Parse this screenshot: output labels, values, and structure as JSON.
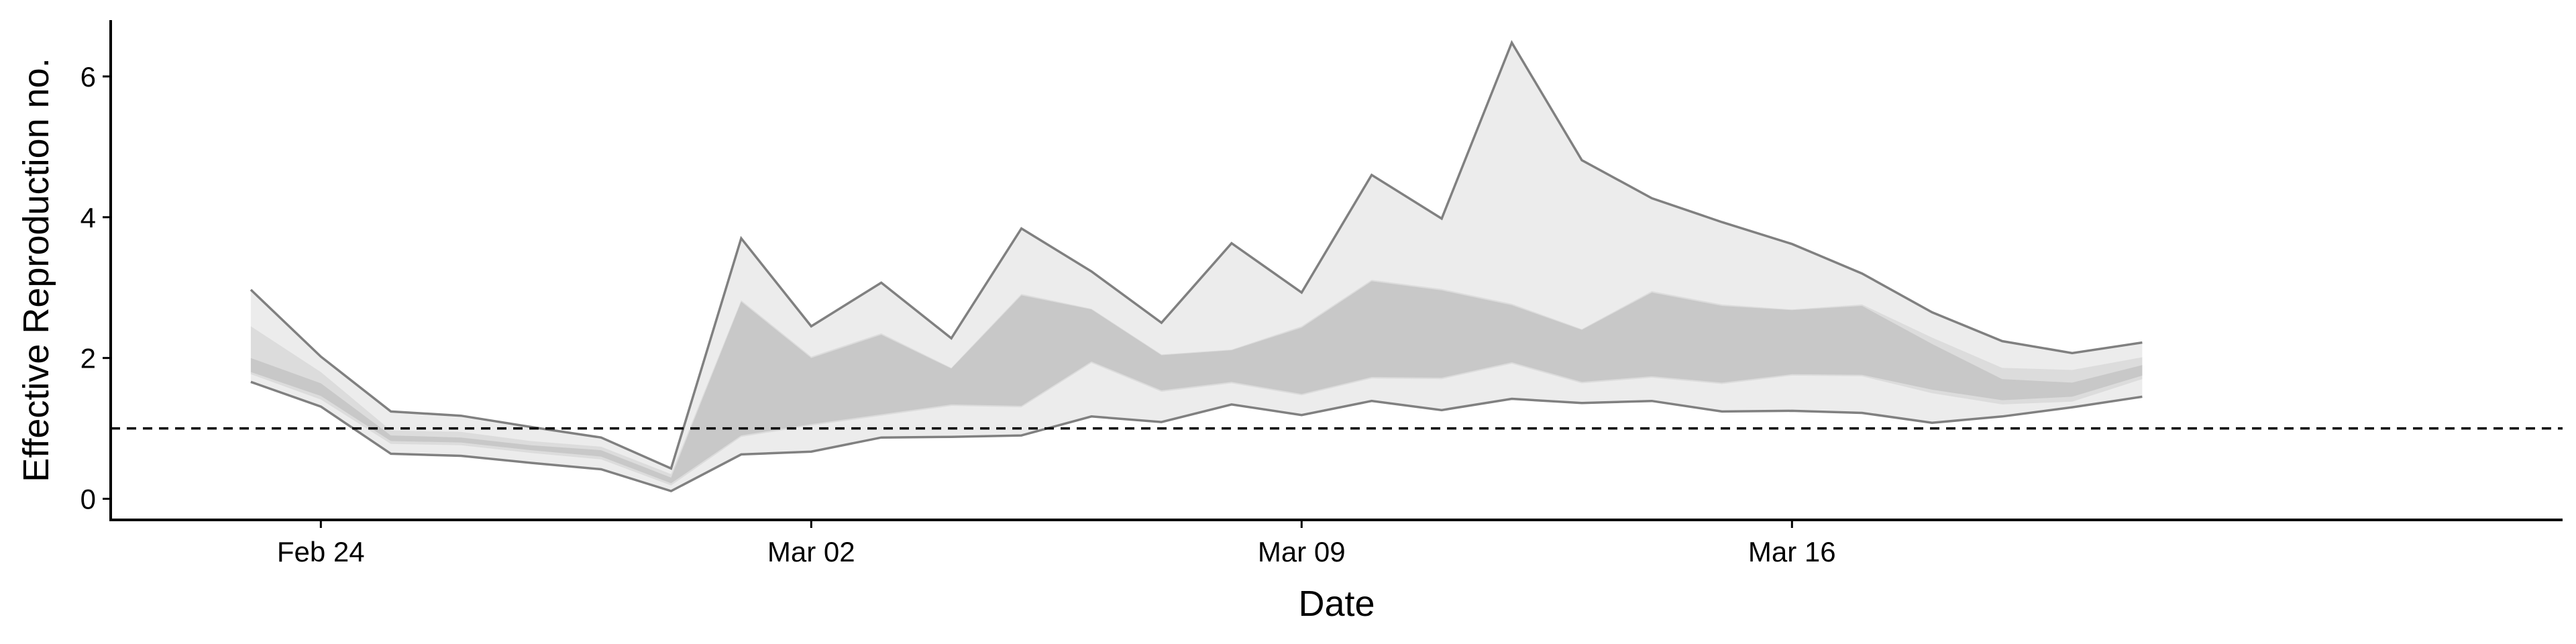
{
  "chart_data": {
    "type": "area",
    "xlabel": "Date",
    "ylabel": "Effective Reproduction no.",
    "x_ticks": [
      {
        "date": "2020-02-24",
        "label": "Feb 24"
      },
      {
        "date": "2020-03-02",
        "label": "Mar 02"
      },
      {
        "date": "2020-03-09",
        "label": "Mar 09"
      },
      {
        "date": "2020-03-16",
        "label": "Mar 16"
      }
    ],
    "y_ticks": [
      0,
      2,
      4,
      6
    ],
    "xlim": [
      "2020-02-21",
      "2020-03-27"
    ],
    "ylim": [
      -0.3,
      6.8
    ],
    "reference_line": 1,
    "grid": false,
    "x": [
      "2020-02-23",
      "2020-02-24",
      "2020-02-25",
      "2020-02-26",
      "2020-02-27",
      "2020-02-28",
      "2020-02-29",
      "2020-03-01",
      "2020-03-02",
      "2020-03-03",
      "2020-03-04",
      "2020-03-05",
      "2020-03-06",
      "2020-03-07",
      "2020-03-08",
      "2020-03-09",
      "2020-03-10",
      "2020-03-11",
      "2020-03-12",
      "2020-03-13",
      "2020-03-14",
      "2020-03-15",
      "2020-03-16",
      "2020-03-17",
      "2020-03-18",
      "2020-03-19",
      "2020-03-20",
      "2020-03-21"
    ],
    "bands": [
      {
        "level": "outer",
        "color": "#ececec",
        "upper": [
          2.97,
          2.02,
          1.24,
          1.18,
          1.02,
          0.87,
          0.43,
          3.7,
          2.45,
          3.07,
          2.28,
          3.84,
          3.23,
          2.5,
          3.63,
          2.93,
          4.6,
          3.98,
          6.48,
          4.81,
          4.27,
          3.93,
          3.62,
          3.2,
          2.65,
          2.24,
          2.07,
          2.22
        ],
        "lower": [
          1.66,
          1.31,
          0.64,
          0.61,
          0.51,
          0.42,
          0.11,
          0.63,
          0.67,
          0.87,
          0.88,
          0.9,
          1.17,
          1.09,
          1.34,
          1.19,
          1.39,
          1.26,
          1.42,
          1.36,
          1.39,
          1.24,
          1.25,
          1.22,
          1.08,
          1.17,
          1.3,
          1.45
        ]
      },
      {
        "level": "middle",
        "color": "#dcdcdc",
        "upper": [
          2.45,
          1.8,
          0.97,
          0.95,
          0.82,
          0.74,
          0.35,
          2.82,
          2.02,
          2.35,
          1.86,
          2.91,
          2.7,
          2.05,
          2.12,
          2.45,
          3.11,
          2.98,
          2.77,
          2.41,
          2.95,
          2.76,
          2.69,
          2.76,
          2.29,
          1.86,
          1.83,
          2.01
        ],
        "lower": [
          1.77,
          1.41,
          0.78,
          0.76,
          0.65,
          0.56,
          0.19,
          0.88,
          1.04,
          1.18,
          1.32,
          1.3,
          1.93,
          1.52,
          1.64,
          1.47,
          1.71,
          1.7,
          1.92,
          1.64,
          1.72,
          1.63,
          1.75,
          1.74,
          1.5,
          1.34,
          1.38,
          1.7
        ]
      },
      {
        "level": "inner",
        "color": "#c8c8c8",
        "upper": [
          2.0,
          1.64,
          0.9,
          0.87,
          0.76,
          0.69,
          0.3,
          2.8,
          2.0,
          2.33,
          1.85,
          2.89,
          2.69,
          2.04,
          2.11,
          2.43,
          3.09,
          2.96,
          2.75,
          2.4,
          2.93,
          2.74,
          2.68,
          2.74,
          2.2,
          1.7,
          1.65,
          1.9
        ],
        "lower": [
          1.8,
          1.46,
          0.82,
          0.8,
          0.69,
          0.6,
          0.22,
          0.9,
          1.06,
          1.2,
          1.34,
          1.32,
          1.95,
          1.54,
          1.66,
          1.49,
          1.73,
          1.72,
          1.94,
          1.66,
          1.74,
          1.65,
          1.77,
          1.76,
          1.55,
          1.4,
          1.45,
          1.75
        ]
      }
    ]
  }
}
